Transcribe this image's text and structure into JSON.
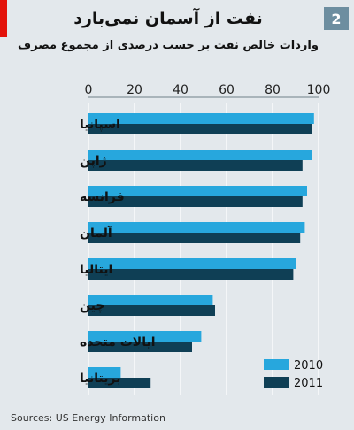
{
  "badge": "2",
  "colors": {
    "accent": "#e3120b",
    "series_2010": "#27a7dd",
    "series_2011": "#0f3f55"
  },
  "chart_data": {
    "type": "bar",
    "orientation": "horizontal",
    "title": "نفت از آسمان نمی‌بارد",
    "subtitle": "واردات خالص نفت بر حسب درصدی از مجموع مصرف",
    "categories": [
      "اسپانیا",
      "ژاپن",
      "فرانسه",
      "آلمان",
      "ایتالیا",
      "چین",
      "ایالات متحده",
      "بریتانیا"
    ],
    "series": [
      {
        "name": "2010",
        "values": [
          98,
          97,
          95,
          94,
          90,
          54,
          49,
          14
        ]
      },
      {
        "name": "2011",
        "values": [
          97,
          93,
          93,
          92,
          89,
          55,
          45,
          27
        ]
      }
    ],
    "xlim": [
      0,
      100
    ],
    "xticks": [
      "0",
      "20",
      "40",
      "60",
      "80",
      "100"
    ],
    "xticks_position": "top",
    "grid": true,
    "legend_position": "bottom-right",
    "source": "Sources: US Energy Information"
  }
}
